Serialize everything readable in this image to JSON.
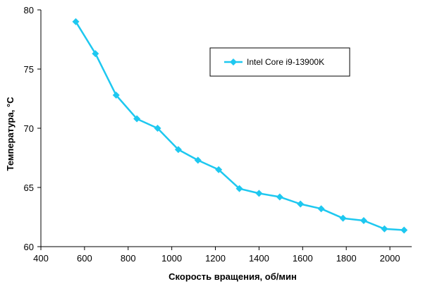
{
  "chart_data": {
    "type": "line",
    "xlabel": "Скорость вращения, об/мин",
    "ylabel": "Температура, °C",
    "xlim": [
      400,
      2100
    ],
    "ylim": [
      60,
      80
    ],
    "xticks": [
      400,
      600,
      800,
      1000,
      1200,
      1400,
      1600,
      1800,
      2000
    ],
    "yticks": [
      60,
      65,
      70,
      75,
      80
    ],
    "grid": false,
    "legend_position": "top-right",
    "series": [
      {
        "name": "Intel Core i9-13900K",
        "color": "#1ec8f0",
        "marker": "diamond",
        "x": [
          560,
          650,
          745,
          840,
          935,
          1030,
          1120,
          1215,
          1310,
          1400,
          1495,
          1590,
          1685,
          1785,
          1880,
          1975,
          2065
        ],
        "y": [
          79.0,
          76.3,
          72.8,
          70.8,
          70.0,
          68.2,
          67.3,
          66.5,
          64.9,
          64.5,
          64.2,
          63.6,
          63.2,
          62.4,
          62.2,
          61.5,
          61.4
        ]
      }
    ]
  }
}
